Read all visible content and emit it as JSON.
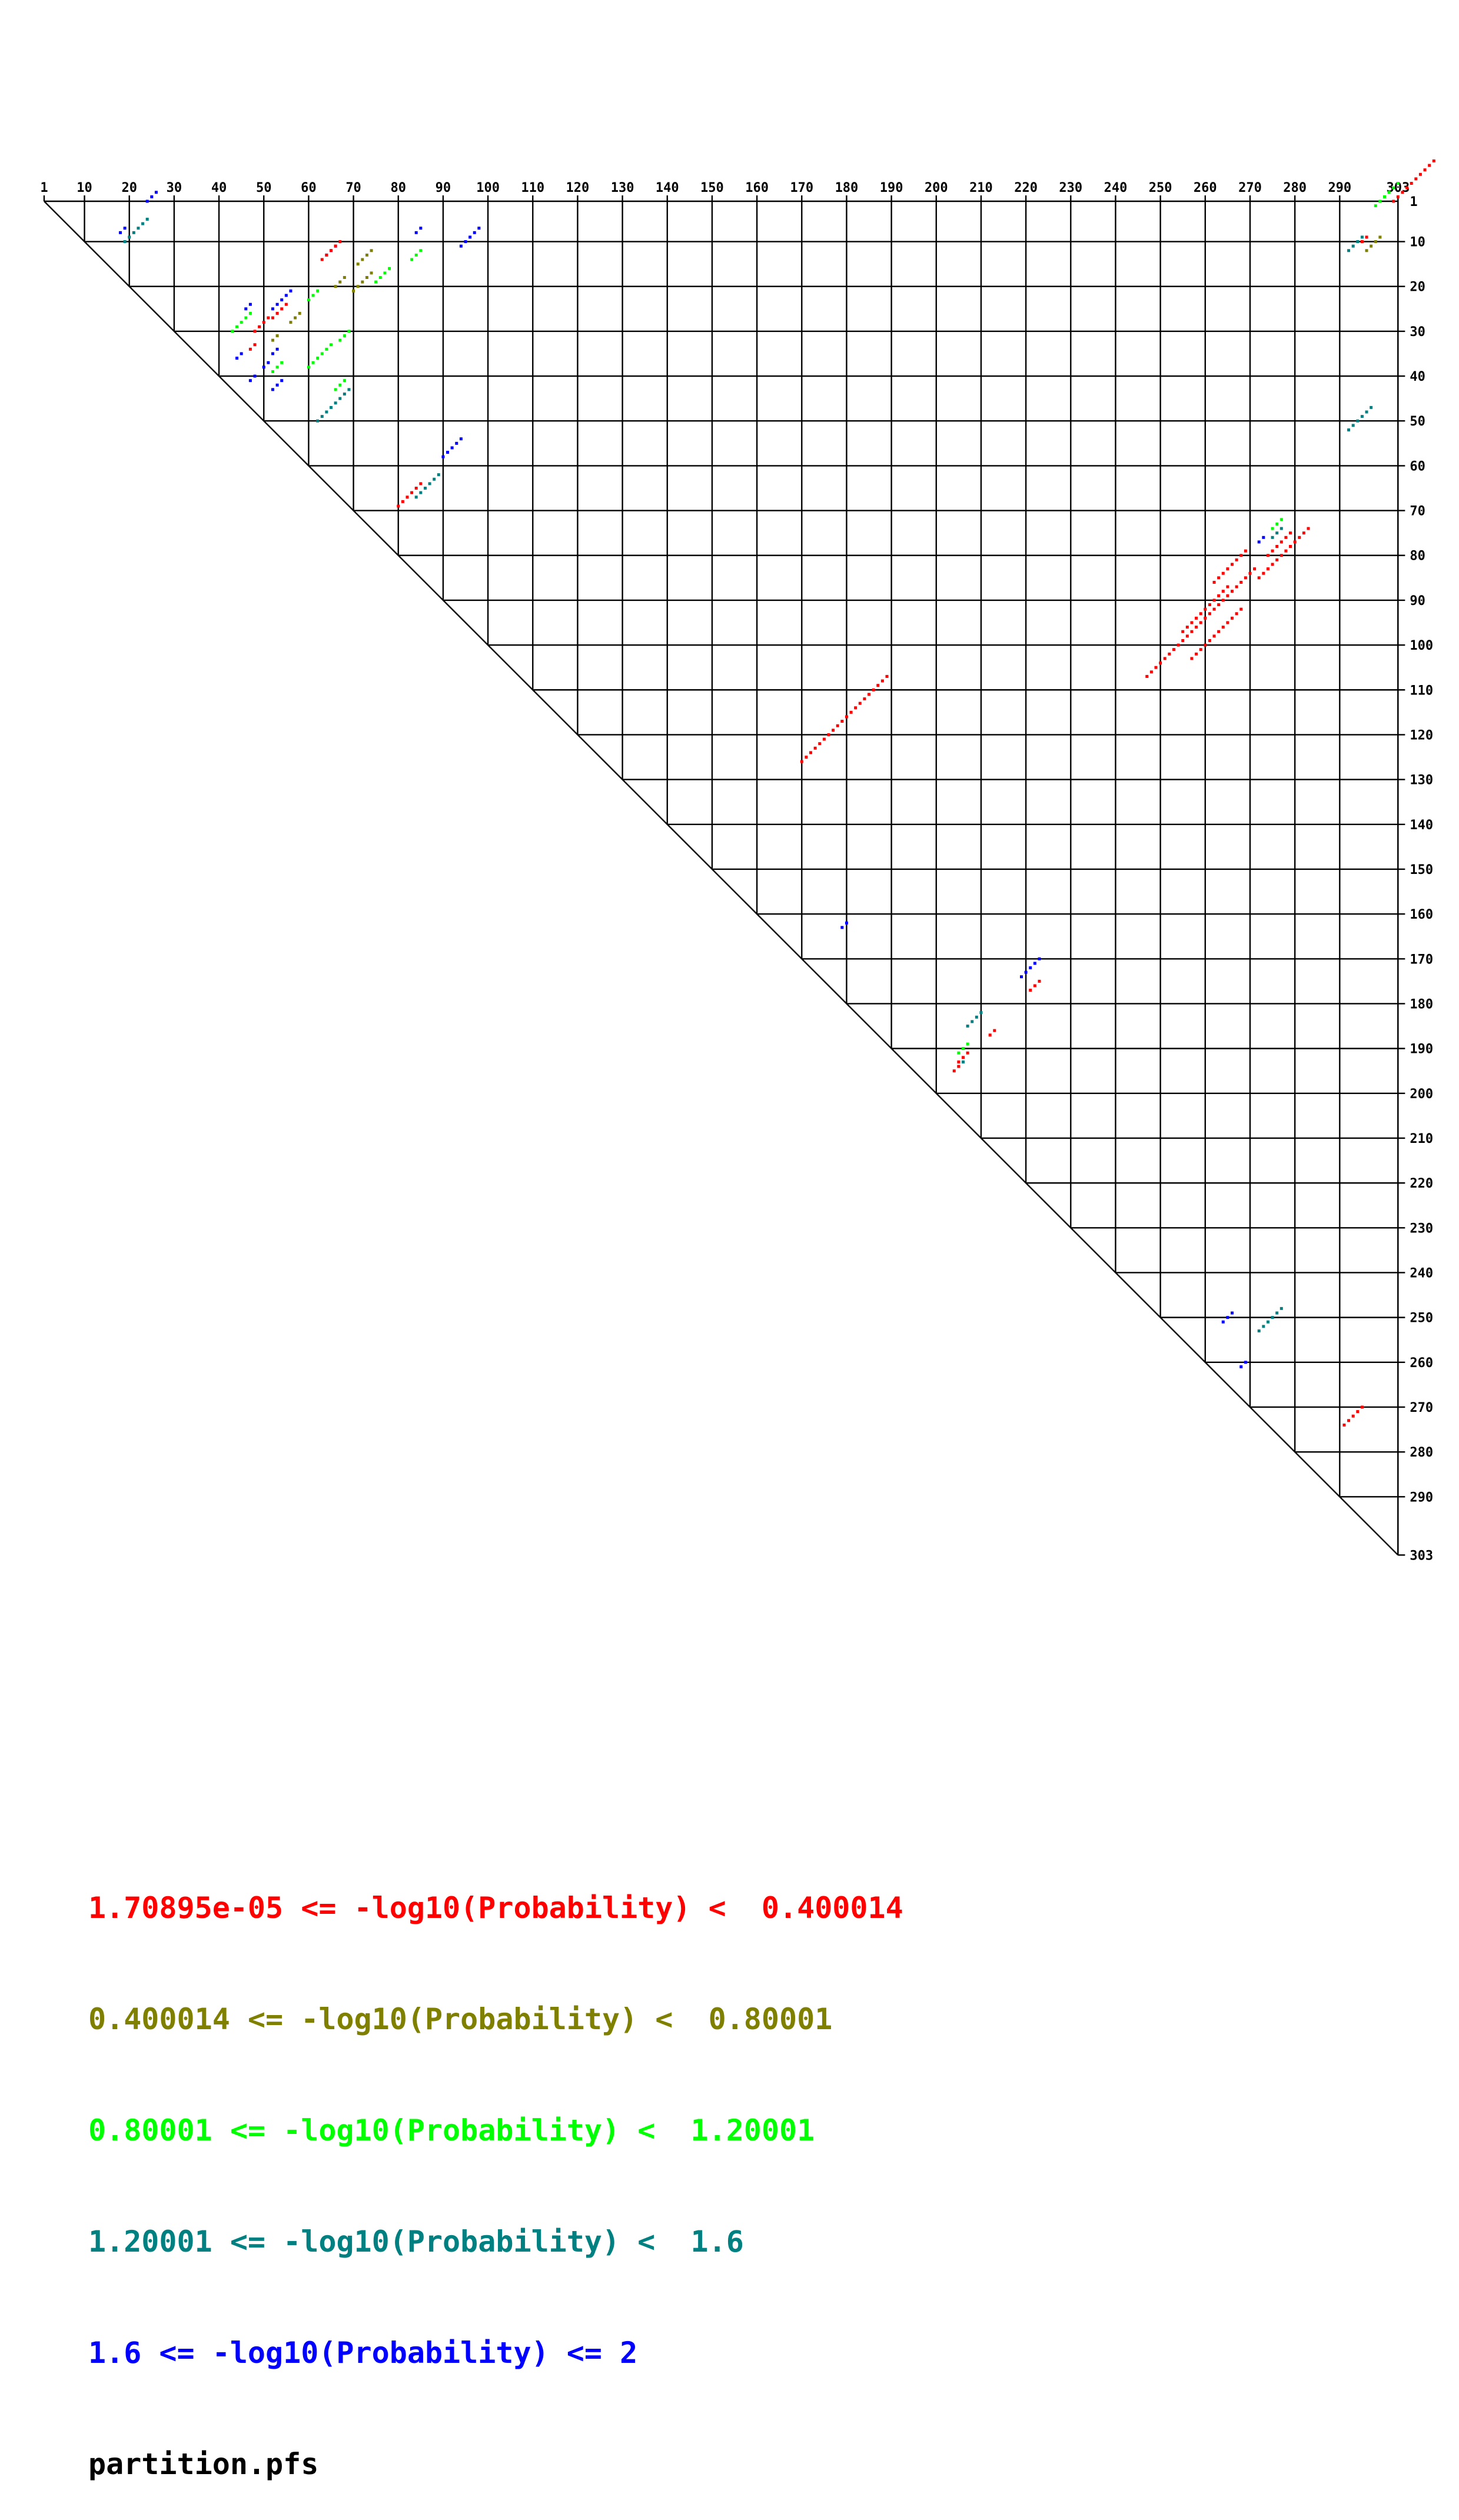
{
  "chart_data": {
    "type": "scatter",
    "title": "",
    "xlabel": "",
    "ylabel": "",
    "sequence_length": 303,
    "x_ticks": [
      1,
      10,
      20,
      30,
      40,
      50,
      60,
      70,
      80,
      90,
      100,
      110,
      120,
      130,
      140,
      150,
      160,
      170,
      180,
      190,
      200,
      210,
      220,
      230,
      240,
      250,
      260,
      270,
      280,
      290,
      303
    ],
    "y_ticks": [
      1,
      10,
      20,
      30,
      40,
      50,
      60,
      70,
      80,
      90,
      100,
      110,
      120,
      130,
      140,
      150,
      160,
      170,
      180,
      190,
      200,
      210,
      220,
      230,
      240,
      250,
      260,
      270,
      280,
      290,
      303
    ],
    "legend": [
      {
        "label": "1.70895e-05 <= -log10(Probability) <  0.400014",
        "color": "#ff0000"
      },
      {
        "label": "0.400014 <= -log10(Probability) <  0.80001",
        "color": "#808000"
      },
      {
        "label": "0.80001 <= -log10(Probability) <  1.20001",
        "color": "#00ff00"
      },
      {
        "label": "1.20001 <= -log10(Probability) <  1.6",
        "color": "#008080"
      },
      {
        "label": "1.6 <= -log10(Probability) <= 2",
        "color": "#0000ff"
      }
    ],
    "filename": "partition.pfs",
    "series": [
      {
        "color": "#0000ff",
        "helices": [
          [
            24,
            1,
            3
          ],
          [
            18,
            8,
            2
          ],
          [
            84,
            8,
            2
          ],
          [
            94,
            11,
            5
          ],
          [
            52,
            25,
            3
          ],
          [
            64,
            13,
            3
          ],
          [
            55,
            22,
            2
          ],
          [
            46,
            25,
            2
          ],
          [
            44,
            36,
            2
          ],
          [
            47,
            41,
            2
          ],
          [
            50,
            38,
            2
          ],
          [
            52,
            35,
            2
          ],
          [
            52,
            43,
            3
          ],
          [
            90,
            58,
            5
          ],
          [
            179,
            163,
            2
          ],
          [
            272,
            77,
            2
          ],
          [
            219,
            174,
            5
          ],
          [
            264,
            251,
            3
          ],
          [
            268,
            261,
            2
          ]
        ]
      },
      {
        "color": "#008080",
        "helices": [
          [
            19,
            10,
            6
          ],
          [
            292,
            12,
            4
          ],
          [
            62,
            50,
            8
          ],
          [
            292,
            52,
            6
          ],
          [
            84,
            67,
            6
          ],
          [
            207,
            185,
            4
          ],
          [
            272,
            253,
            6
          ],
          [
            275,
            76,
            3
          ],
          [
            205,
            194,
            2
          ]
        ]
      },
      {
        "color": "#00ff00",
        "helices": [
          [
            298,
            2,
            6
          ],
          [
            43,
            30,
            5
          ],
          [
            83,
            14,
            3
          ],
          [
            60,
            23,
            3
          ],
          [
            75,
            19,
            4
          ],
          [
            67,
            32,
            3
          ],
          [
            60,
            38,
            6
          ],
          [
            66,
            43,
            3
          ],
          [
            52,
            39,
            3
          ],
          [
            205,
            191,
            3
          ],
          [
            275,
            74,
            3
          ]
        ]
      },
      {
        "color": "#808000",
        "helices": [
          [
            296,
            12,
            4
          ],
          [
            71,
            15,
            4
          ],
          [
            52,
            32,
            2
          ],
          [
            70,
            21,
            5
          ],
          [
            56,
            28,
            3
          ],
          [
            66,
            20,
            3
          ]
        ]
      },
      {
        "color": "#ff0000",
        "helices": [
          [
            302,
            1,
            10
          ],
          [
            295,
            10,
            2
          ],
          [
            63,
            14,
            5
          ],
          [
            52,
            27,
            4
          ],
          [
            48,
            30,
            4
          ],
          [
            47,
            34,
            2
          ],
          [
            80,
            69,
            6
          ],
          [
            274,
            80,
            6
          ],
          [
            262,
            86,
            8
          ],
          [
            272,
            85,
            12
          ],
          [
            255,
            97,
            11
          ],
          [
            257,
            103,
            12
          ],
          [
            247,
            107,
            25
          ],
          [
            170,
            126,
            20
          ],
          [
            221,
            177,
            3
          ],
          [
            212,
            187,
            2
          ],
          [
            205,
            193,
            3
          ],
          [
            204,
            195,
            2
          ],
          [
            291,
            274,
            5
          ]
        ]
      }
    ]
  }
}
